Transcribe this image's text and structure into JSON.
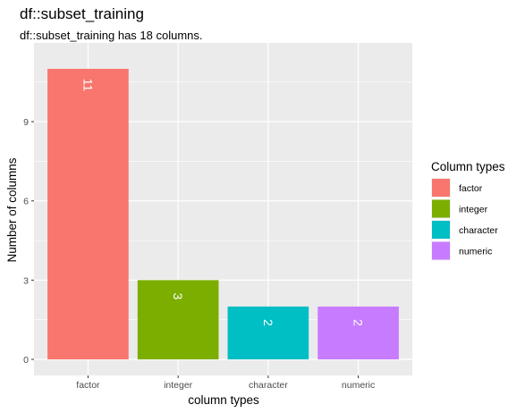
{
  "chart_data": {
    "type": "bar",
    "title": "df::subset_training",
    "subtitle": "df::subset_training has 18 columns.",
    "xlabel": "column types",
    "ylabel": "Number of columns",
    "categories": [
      "factor",
      "integer",
      "character",
      "numeric"
    ],
    "values": [
      11,
      3,
      2,
      2
    ],
    "colors": [
      "#F8766D",
      "#7CAE00",
      "#00BFC4",
      "#C77CFF"
    ],
    "ylim": [
      0,
      11.55
    ],
    "yticks": [
      0,
      3,
      6,
      9
    ],
    "grid": true,
    "legend": {
      "title": "Column types",
      "placement": "right",
      "entries": [
        "factor",
        "integer",
        "character",
        "numeric"
      ]
    }
  }
}
